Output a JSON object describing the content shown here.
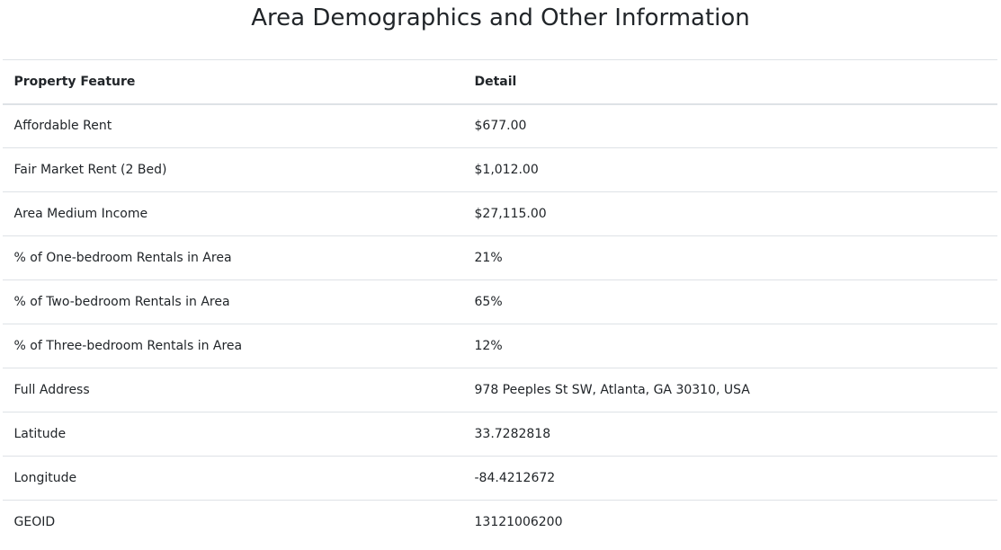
{
  "page": {
    "title": "Area Demographics and Other Information"
  },
  "table": {
    "headers": [
      "Property Feature",
      "Detail"
    ],
    "rows": [
      {
        "feature": "Affordable Rent",
        "detail": "$677.00"
      },
      {
        "feature": "Fair Market Rent (2 Bed)",
        "detail": "$1,012.00"
      },
      {
        "feature": "Area Medium Income",
        "detail": "$27,115.00"
      },
      {
        "feature": "% of One-bedroom Rentals in Area",
        "detail": "21%"
      },
      {
        "feature": "% of Two-bedroom Rentals in Area",
        "detail": "65%"
      },
      {
        "feature": "% of Three-bedroom Rentals in Area",
        "detail": "12%"
      },
      {
        "feature": "Full Address",
        "detail": "978 Peeples St SW, Atlanta, GA 30310, USA"
      },
      {
        "feature": "Latitude",
        "detail": "33.7282818"
      },
      {
        "feature": "Longitude",
        "detail": "-84.4212672"
      },
      {
        "feature": "GEOID",
        "detail": "13121006200"
      }
    ]
  }
}
